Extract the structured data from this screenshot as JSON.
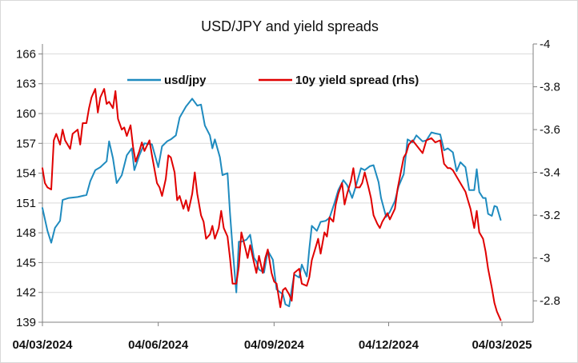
{
  "chart_data": {
    "type": "line",
    "title": "USD/JPY and yield spreads",
    "x_tick_labels": [
      "04/03/2024",
      "04/06/2024",
      "04/09/2024",
      "04/12/2024",
      "04/03/2025"
    ],
    "x_tick_dates": [
      "2024-03-04",
      "2024-06-04",
      "2024-09-04",
      "2024-12-04",
      "2025-03-04"
    ],
    "y_left": {
      "range": [
        139,
        167
      ],
      "ticks": [
        139,
        142,
        145,
        148,
        151,
        154,
        157,
        160,
        163,
        166
      ]
    },
    "y_right": {
      "range": [
        -2.7,
        -4.0
      ],
      "ticks": [
        -4,
        -3.8,
        -3.6,
        -3.4,
        -3.2,
        -3,
        -2.8
      ],
      "tick_labels": [
        "-4",
        "-3.8",
        "-3.6",
        "-3.4",
        "-3.2",
        "-3",
        "-2.8"
      ]
    },
    "grid": "horizontal",
    "legend_position": "top-center",
    "series": [
      {
        "name": "usd/jpy",
        "axis": "left",
        "color": "#1f8bbf",
        "points": [
          [
            "2024-03-04",
            150.5
          ],
          [
            "2024-03-08",
            148.2
          ],
          [
            "2024-03-11",
            147.0
          ],
          [
            "2024-03-14",
            148.5
          ],
          [
            "2024-03-18",
            149.2
          ],
          [
            "2024-03-20",
            151.3
          ],
          [
            "2024-03-25",
            151.5
          ],
          [
            "2024-04-01",
            151.6
          ],
          [
            "2024-04-08",
            151.8
          ],
          [
            "2024-04-11",
            153.2
          ],
          [
            "2024-04-15",
            154.3
          ],
          [
            "2024-04-19",
            154.6
          ],
          [
            "2024-04-24",
            155.2
          ],
          [
            "2024-04-26",
            157.2
          ],
          [
            "2024-04-29",
            155.5
          ],
          [
            "2024-05-02",
            153.0
          ],
          [
            "2024-05-06",
            153.8
          ],
          [
            "2024-05-10",
            155.8
          ],
          [
            "2024-05-14",
            156.5
          ],
          [
            "2024-05-16",
            154.3
          ],
          [
            "2024-05-20",
            155.8
          ],
          [
            "2024-05-24",
            157.0
          ],
          [
            "2024-05-30",
            156.9
          ],
          [
            "2024-06-04",
            154.6
          ],
          [
            "2024-06-07",
            156.7
          ],
          [
            "2024-06-11",
            157.2
          ],
          [
            "2024-06-14",
            157.4
          ],
          [
            "2024-06-18",
            157.8
          ],
          [
            "2024-06-21",
            159.6
          ],
          [
            "2024-06-26",
            160.7
          ],
          [
            "2024-07-01",
            161.5
          ],
          [
            "2024-07-05",
            160.8
          ],
          [
            "2024-07-08",
            160.9
          ],
          [
            "2024-07-11",
            158.8
          ],
          [
            "2024-07-15",
            157.8
          ],
          [
            "2024-07-17",
            156.5
          ],
          [
            "2024-07-19",
            157.4
          ],
          [
            "2024-07-23",
            155.6
          ],
          [
            "2024-07-25",
            153.8
          ],
          [
            "2024-07-29",
            154.0
          ],
          [
            "2024-07-31",
            150.0
          ],
          [
            "2024-08-02",
            146.5
          ],
          [
            "2024-08-05",
            142.0
          ],
          [
            "2024-08-07",
            147.1
          ],
          [
            "2024-08-09",
            147.1
          ],
          [
            "2024-08-13",
            147.3
          ],
          [
            "2024-08-16",
            147.8
          ],
          [
            "2024-08-19",
            145.5
          ],
          [
            "2024-08-21",
            145.1
          ],
          [
            "2024-08-23",
            144.3
          ],
          [
            "2024-08-27",
            144.0
          ],
          [
            "2024-08-30",
            146.2
          ],
          [
            "2024-09-03",
            145.3
          ],
          [
            "2024-09-06",
            142.3
          ],
          [
            "2024-09-11",
            141.8
          ],
          [
            "2024-09-13",
            140.8
          ],
          [
            "2024-09-16",
            140.6
          ],
          [
            "2024-09-18",
            142.3
          ],
          [
            "2024-09-20",
            143.8
          ],
          [
            "2024-09-24",
            143.5
          ],
          [
            "2024-09-26",
            144.8
          ],
          [
            "2024-09-30",
            143.6
          ],
          [
            "2024-10-02",
            146.4
          ],
          [
            "2024-10-04",
            148.7
          ],
          [
            "2024-10-08",
            148.2
          ],
          [
            "2024-10-11",
            149.1
          ],
          [
            "2024-10-15",
            149.2
          ],
          [
            "2024-10-18",
            149.5
          ],
          [
            "2024-10-22",
            151.0
          ],
          [
            "2024-10-25",
            152.3
          ],
          [
            "2024-10-29",
            153.3
          ],
          [
            "2024-11-01",
            152.8
          ],
          [
            "2024-11-05",
            151.5
          ],
          [
            "2024-11-08",
            152.7
          ],
          [
            "2024-11-12",
            154.5
          ],
          [
            "2024-11-15",
            154.3
          ],
          [
            "2024-11-19",
            154.7
          ],
          [
            "2024-11-22",
            154.8
          ],
          [
            "2024-11-26",
            153.1
          ],
          [
            "2024-11-28",
            151.5
          ],
          [
            "2024-12-02",
            149.6
          ],
          [
            "2024-12-05",
            150.1
          ],
          [
            "2024-12-09",
            151.2
          ],
          [
            "2024-12-12",
            152.7
          ],
          [
            "2024-12-16",
            153.9
          ],
          [
            "2024-12-19",
            157.4
          ],
          [
            "2024-12-23",
            157.1
          ],
          [
            "2024-12-26",
            157.8
          ],
          [
            "2024-12-31",
            157.2
          ],
          [
            "2025-01-03",
            157.3
          ],
          [
            "2025-01-07",
            158.1
          ],
          [
            "2025-01-10",
            158.0
          ],
          [
            "2025-01-14",
            157.9
          ],
          [
            "2025-01-17",
            156.3
          ],
          [
            "2025-01-20",
            156.5
          ],
          [
            "2025-01-24",
            156.1
          ],
          [
            "2025-01-27",
            154.2
          ],
          [
            "2025-01-30",
            155.1
          ],
          [
            "2025-02-03",
            154.6
          ],
          [
            "2025-02-06",
            152.3
          ],
          [
            "2025-02-10",
            152.3
          ],
          [
            "2025-02-12",
            154.4
          ],
          [
            "2025-02-14",
            152.1
          ],
          [
            "2025-02-17",
            151.5
          ],
          [
            "2025-02-19",
            151.5
          ],
          [
            "2025-02-21",
            149.9
          ],
          [
            "2025-02-24",
            149.7
          ],
          [
            "2025-02-26",
            150.7
          ],
          [
            "2025-02-28",
            150.6
          ],
          [
            "2025-03-03",
            149.3
          ]
        ]
      },
      {
        "name": "10y yield spread (rhs)",
        "axis": "right",
        "color": "#e00000",
        "points": [
          [
            "2024-03-04",
            -3.42
          ],
          [
            "2024-03-06",
            -3.35
          ],
          [
            "2024-03-08",
            -3.33
          ],
          [
            "2024-03-11",
            -3.32
          ],
          [
            "2024-03-13",
            -3.55
          ],
          [
            "2024-03-15",
            -3.58
          ],
          [
            "2024-03-18",
            -3.53
          ],
          [
            "2024-03-20",
            -3.6
          ],
          [
            "2024-03-22",
            -3.55
          ],
          [
            "2024-03-26",
            -3.51
          ],
          [
            "2024-03-28",
            -3.58
          ],
          [
            "2024-04-01",
            -3.6
          ],
          [
            "2024-04-03",
            -3.53
          ],
          [
            "2024-04-05",
            -3.63
          ],
          [
            "2024-04-08",
            -3.63
          ],
          [
            "2024-04-10",
            -3.7
          ],
          [
            "2024-04-12",
            -3.75
          ],
          [
            "2024-04-15",
            -3.79
          ],
          [
            "2024-04-17",
            -3.68
          ],
          [
            "2024-04-19",
            -3.75
          ],
          [
            "2024-04-22",
            -3.79
          ],
          [
            "2024-04-24",
            -3.72
          ],
          [
            "2024-04-26",
            -3.73
          ],
          [
            "2024-04-29",
            -3.7
          ],
          [
            "2024-05-01",
            -3.78
          ],
          [
            "2024-05-03",
            -3.65
          ],
          [
            "2024-05-06",
            -3.6
          ],
          [
            "2024-05-08",
            -3.61
          ],
          [
            "2024-05-10",
            -3.57
          ],
          [
            "2024-05-13",
            -3.62
          ],
          [
            "2024-05-15",
            -3.52
          ],
          [
            "2024-05-17",
            -3.45
          ],
          [
            "2024-05-20",
            -3.5
          ],
          [
            "2024-05-22",
            -3.54
          ],
          [
            "2024-05-24",
            -3.5
          ],
          [
            "2024-05-28",
            -3.55
          ],
          [
            "2024-05-30",
            -3.48
          ],
          [
            "2024-06-03",
            -3.35
          ],
          [
            "2024-06-05",
            -3.33
          ],
          [
            "2024-06-07",
            -3.29
          ],
          [
            "2024-06-10",
            -3.37
          ],
          [
            "2024-06-12",
            -3.48
          ],
          [
            "2024-06-14",
            -3.47
          ],
          [
            "2024-06-17",
            -3.4
          ],
          [
            "2024-06-19",
            -3.27
          ],
          [
            "2024-06-21",
            -3.29
          ],
          [
            "2024-06-24",
            -3.23
          ],
          [
            "2024-06-26",
            -3.27
          ],
          [
            "2024-06-28",
            -3.22
          ],
          [
            "2024-07-01",
            -3.3
          ],
          [
            "2024-07-03",
            -3.4
          ],
          [
            "2024-07-05",
            -3.3
          ],
          [
            "2024-07-08",
            -3.2
          ],
          [
            "2024-07-10",
            -3.17
          ],
          [
            "2024-07-12",
            -3.09
          ],
          [
            "2024-07-15",
            -3.11
          ],
          [
            "2024-07-17",
            -3.15
          ],
          [
            "2024-07-19",
            -3.09
          ],
          [
            "2024-07-22",
            -3.14
          ],
          [
            "2024-07-24",
            -3.22
          ],
          [
            "2024-07-26",
            -3.14
          ],
          [
            "2024-07-29",
            -3.1
          ],
          [
            "2024-07-31",
            -3.0
          ],
          [
            "2024-08-02",
            -2.88
          ],
          [
            "2024-08-05",
            -2.88
          ],
          [
            "2024-08-07",
            -2.96
          ],
          [
            "2024-08-09",
            -3.12
          ],
          [
            "2024-08-12",
            -3.05
          ],
          [
            "2024-08-14",
            -3.0
          ],
          [
            "2024-08-16",
            -3.06
          ],
          [
            "2024-08-19",
            -2.98
          ],
          [
            "2024-08-21",
            -2.93
          ],
          [
            "2024-08-23",
            -3.01
          ],
          [
            "2024-08-26",
            -2.93
          ],
          [
            "2024-08-28",
            -3.0
          ],
          [
            "2024-08-30",
            -3.04
          ],
          [
            "2024-09-02",
            -2.93
          ],
          [
            "2024-09-04",
            -2.89
          ],
          [
            "2024-09-06",
            -2.88
          ],
          [
            "2024-09-09",
            -2.77
          ],
          [
            "2024-09-11",
            -2.85
          ],
          [
            "2024-09-13",
            -2.86
          ],
          [
            "2024-09-16",
            -2.83
          ],
          [
            "2024-09-18",
            -2.8
          ],
          [
            "2024-09-20",
            -2.93
          ],
          [
            "2024-09-24",
            -2.95
          ],
          [
            "2024-09-26",
            -2.88
          ],
          [
            "2024-09-30",
            -2.87
          ],
          [
            "2024-10-02",
            -2.91
          ],
          [
            "2024-10-04",
            -2.99
          ],
          [
            "2024-10-07",
            -3.05
          ],
          [
            "2024-10-09",
            -3.09
          ],
          [
            "2024-10-11",
            -3.02
          ],
          [
            "2024-10-14",
            -3.12
          ],
          [
            "2024-10-16",
            -3.1
          ],
          [
            "2024-10-18",
            -3.19
          ],
          [
            "2024-10-21",
            -3.17
          ],
          [
            "2024-10-23",
            -3.25
          ],
          [
            "2024-10-25",
            -3.3
          ],
          [
            "2024-10-28",
            -3.35
          ],
          [
            "2024-10-30",
            -3.25
          ],
          [
            "2024-11-01",
            -3.3
          ],
          [
            "2024-11-04",
            -3.36
          ],
          [
            "2024-11-06",
            -3.42
          ],
          [
            "2024-11-08",
            -3.33
          ],
          [
            "2024-11-11",
            -3.33
          ],
          [
            "2024-11-13",
            -3.35
          ],
          [
            "2024-11-15",
            -3.4
          ],
          [
            "2024-11-18",
            -3.33
          ],
          [
            "2024-11-20",
            -3.28
          ],
          [
            "2024-11-22",
            -3.2
          ],
          [
            "2024-11-25",
            -3.16
          ],
          [
            "2024-11-27",
            -3.14
          ],
          [
            "2024-11-29",
            -3.17
          ],
          [
            "2024-12-03",
            -3.21
          ],
          [
            "2024-12-05",
            -3.18
          ],
          [
            "2024-12-09",
            -3.23
          ],
          [
            "2024-12-11",
            -3.32
          ],
          [
            "2024-12-13",
            -3.38
          ],
          [
            "2024-12-16",
            -3.47
          ],
          [
            "2024-12-18",
            -3.49
          ],
          [
            "2024-12-20",
            -3.53
          ],
          [
            "2024-12-23",
            -3.55
          ],
          [
            "2024-12-27",
            -3.52
          ],
          [
            "2024-12-31",
            -3.49
          ],
          [
            "2025-01-03",
            -3.55
          ],
          [
            "2025-01-07",
            -3.56
          ],
          [
            "2025-01-10",
            -3.54
          ],
          [
            "2025-01-14",
            -3.55
          ],
          [
            "2025-01-17",
            -3.44
          ],
          [
            "2025-01-20",
            -3.42
          ],
          [
            "2025-01-22",
            -3.42
          ],
          [
            "2025-01-24",
            -3.41
          ],
          [
            "2025-01-27",
            -3.38
          ],
          [
            "2025-01-29",
            -3.36
          ],
          [
            "2025-01-31",
            -3.34
          ],
          [
            "2025-02-03",
            -3.31
          ],
          [
            "2025-02-05",
            -3.27
          ],
          [
            "2025-02-07",
            -3.23
          ],
          [
            "2025-02-10",
            -3.14
          ],
          [
            "2025-02-12",
            -3.22
          ],
          [
            "2025-02-14",
            -3.12
          ],
          [
            "2025-02-17",
            -3.09
          ],
          [
            "2025-02-19",
            -3.03
          ],
          [
            "2025-02-21",
            -2.95
          ],
          [
            "2025-02-24",
            -2.86
          ],
          [
            "2025-02-26",
            -2.79
          ],
          [
            "2025-02-28",
            -2.75
          ],
          [
            "2025-03-03",
            -2.71
          ]
        ]
      }
    ]
  }
}
